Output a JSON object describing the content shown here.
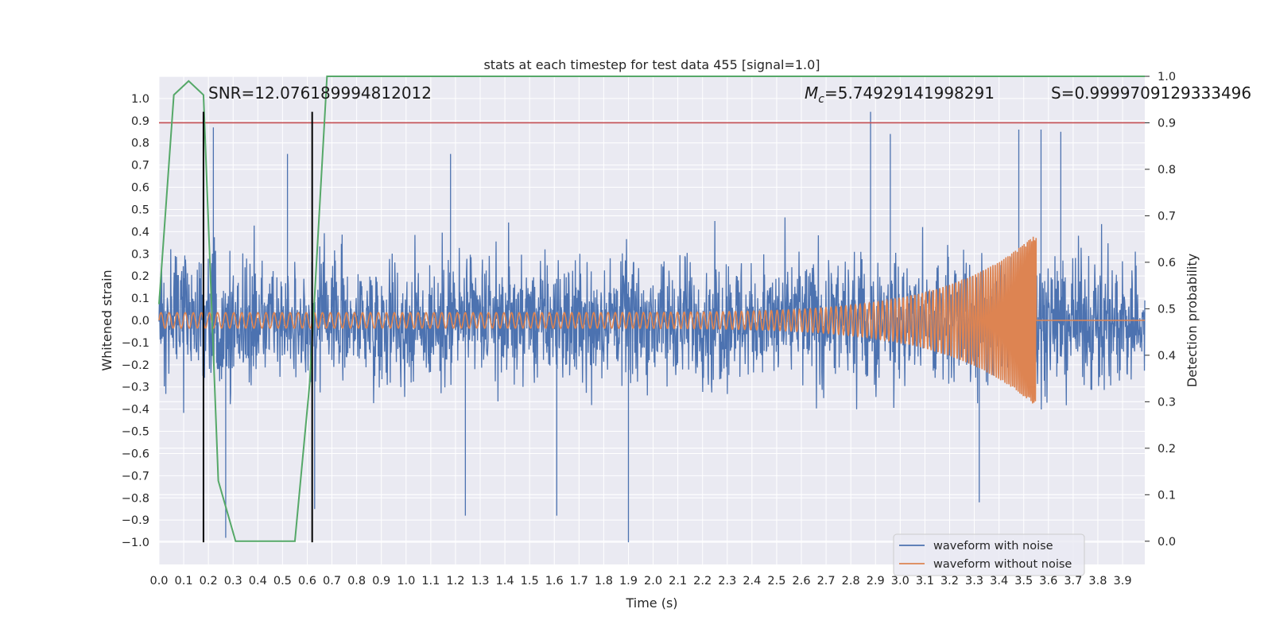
{
  "chart_data": {
    "type": "line",
    "title": "stats at each timestep for test data 455 [signal=1.0]",
    "xlabel": "Time (s)",
    "ylabel": "Whitened strain",
    "ylabel_right": "Detection probability",
    "xlim": [
      0.0,
      3.99
    ],
    "ylim": [
      -1.1,
      1.1
    ],
    "ylim_right": [
      -0.05,
      1.0
    ],
    "x_ticks": [
      "0.0",
      "0.1",
      "0.2",
      "0.3",
      "0.4",
      "0.5",
      "0.6",
      "0.7",
      "0.8",
      "0.9",
      "1.0",
      "1.1",
      "1.2",
      "1.3",
      "1.4",
      "1.5",
      "1.6",
      "1.7",
      "1.8",
      "1.9",
      "2.0",
      "2.1",
      "2.2",
      "2.3",
      "2.4",
      "2.5",
      "2.6",
      "2.7",
      "2.8",
      "2.9",
      "3.0",
      "3.1",
      "3.2",
      "3.3",
      "3.4",
      "3.5",
      "3.6",
      "3.7",
      "3.8",
      "3.9"
    ],
    "y_ticks": [
      "1.0",
      "0.9",
      "0.8",
      "0.7",
      "0.6",
      "0.5",
      "0.4",
      "0.3",
      "0.2",
      "0.1",
      "0.0",
      "−0.1",
      "−0.2",
      "−0.3",
      "−0.4",
      "−0.5",
      "−0.6",
      "−0.7",
      "−0.8",
      "−0.9",
      "−1.0"
    ],
    "y_right_ticks": [
      "1.0",
      "0.9",
      "0.8",
      "0.7",
      "0.6",
      "0.5",
      "0.4",
      "0.3",
      "0.2",
      "0.1",
      "0.0"
    ],
    "legend": {
      "placement": "lower-right",
      "entries": [
        "waveform with noise",
        "waveform without noise"
      ]
    },
    "series": [
      {
        "name": "waveform with noise",
        "color": "#4c72b0",
        "kind": "noise",
        "amplitude_range": [
          -1.0,
          0.94
        ],
        "typical_abs": 0.45,
        "spikes": [
          [
            0.18,
            0.75
          ],
          [
            0.22,
            0.87
          ],
          [
            0.27,
            -0.98
          ],
          [
            0.52,
            0.75
          ],
          [
            0.63,
            -0.85
          ],
          [
            1.18,
            0.75
          ],
          [
            1.24,
            -0.88
          ],
          [
            1.61,
            -0.88
          ],
          [
            1.9,
            -1.0
          ],
          [
            2.88,
            0.94
          ],
          [
            2.96,
            0.84
          ],
          [
            3.32,
            -0.82
          ],
          [
            3.48,
            0.86
          ],
          [
            3.57,
            0.86
          ],
          [
            3.65,
            0.85
          ]
        ]
      },
      {
        "name": "waveform without noise",
        "color": "#dd8452",
        "kind": "chirp",
        "t_merge": 3.55,
        "amp_start": 0.035,
        "amp_peak": 0.39,
        "post_merge_value": 0.0,
        "start_period_s": 0.0327,
        "end_period_s": 0.0055
      },
      {
        "name": "detection probability",
        "color": "#55a868",
        "axis": "right",
        "x": [
          0.0,
          0.06,
          0.12,
          0.18,
          0.24,
          0.31,
          0.37,
          0.43,
          0.49,
          0.55,
          0.61,
          0.68,
          3.99
        ],
        "values": [
          0.51,
          0.96,
          0.99,
          0.96,
          0.13,
          0.0,
          0.0,
          0.0,
          0.0,
          0.0,
          0.34,
          1.0,
          1.0
        ]
      }
    ],
    "hlines": [
      {
        "axis": "right",
        "value": 0.9,
        "color": "#c44e52"
      }
    ],
    "vlines": [
      {
        "x": 0.18,
        "ymin": -1.0,
        "ymax": 0.94,
        "color": "#000000"
      },
      {
        "x": 0.62,
        "ymin": -1.0,
        "ymax": 0.94,
        "color": "#000000"
      }
    ],
    "annotations": [
      {
        "key": "snr",
        "text": "SNR=12.076189994812012",
        "x": 0.2,
        "y": 0.96
      },
      {
        "key": "mc_value",
        "prefix_italic": "M",
        "prefix_sub": "c",
        "text": "=5.74929141998291",
        "x": 2.6,
        "y": 0.96
      },
      {
        "key": "s",
        "text": "S=0.9999709129333496",
        "x": 3.6,
        "y": 0.96
      }
    ]
  }
}
